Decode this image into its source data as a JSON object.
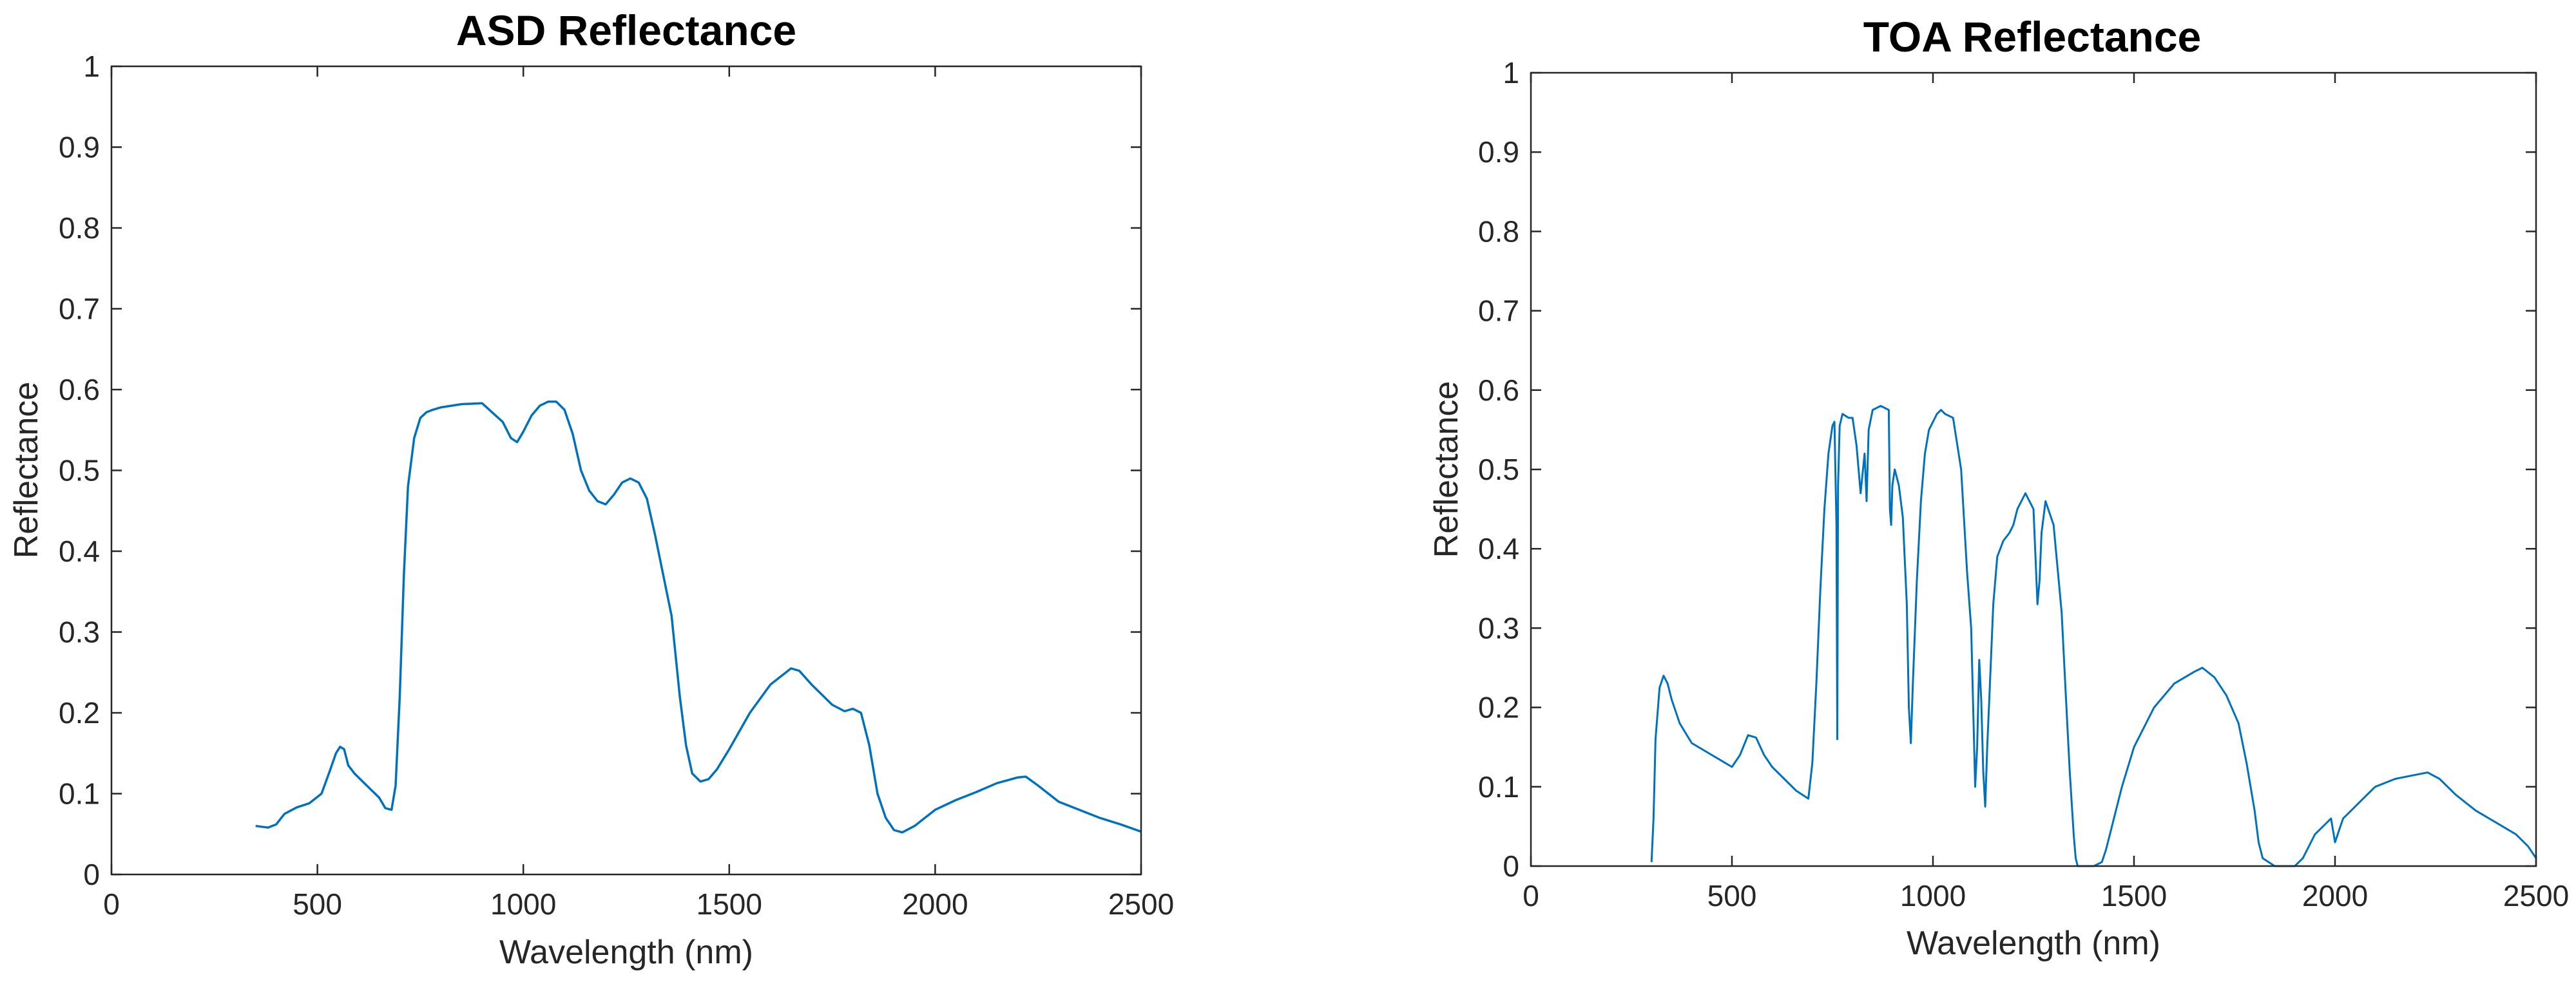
{
  "colors": {
    "line": "#0072BD",
    "axis": "#262626",
    "background": "#ffffff"
  },
  "chart_data": [
    {
      "type": "line",
      "title": "ASD Reflectance",
      "xlabel": "Wavelength (nm)",
      "ylabel": "Reflectance",
      "xlim": [
        0,
        2500
      ],
      "ylim": [
        0,
        1
      ],
      "xticks": [
        0,
        500,
        1000,
        1500,
        2000,
        2500
      ],
      "yticks": [
        0,
        0.1,
        0.2,
        0.3,
        0.4,
        0.5,
        0.6,
        0.7,
        0.8,
        0.9,
        1
      ],
      "grid": false,
      "series": [
        {
          "x": [
            350,
            380,
            400,
            420,
            450,
            480,
            510,
            530,
            545,
            555,
            565,
            575,
            590,
            610,
            630,
            650,
            665,
            680,
            690,
            700,
            710,
            720,
            735,
            750,
            765,
            780,
            800,
            850,
            900,
            950,
            970,
            985,
            1000,
            1020,
            1040,
            1060,
            1080,
            1100,
            1120,
            1140,
            1160,
            1180,
            1200,
            1220,
            1240,
            1260,
            1280,
            1300,
            1320,
            1340,
            1360,
            1380,
            1395,
            1410,
            1430,
            1450,
            1470,
            1500,
            1550,
            1600,
            1650,
            1670,
            1700,
            1750,
            1780,
            1800,
            1820,
            1840,
            1860,
            1880,
            1900,
            1920,
            1950,
            2000,
            2050,
            2100,
            2150,
            2200,
            2220,
            2250,
            2300,
            2350,
            2400,
            2450,
            2500
          ],
          "y": [
            0.06,
            0.058,
            0.062,
            0.075,
            0.083,
            0.088,
            0.1,
            0.128,
            0.15,
            0.158,
            0.155,
            0.135,
            0.125,
            0.115,
            0.105,
            0.095,
            0.082,
            0.08,
            0.11,
            0.22,
            0.37,
            0.48,
            0.54,
            0.565,
            0.572,
            0.575,
            0.578,
            0.582,
            0.583,
            0.56,
            0.54,
            0.535,
            0.548,
            0.568,
            0.58,
            0.585,
            0.585,
            0.575,
            0.545,
            0.5,
            0.475,
            0.462,
            0.458,
            0.47,
            0.485,
            0.49,
            0.485,
            0.465,
            0.42,
            0.37,
            0.32,
            0.22,
            0.16,
            0.125,
            0.115,
            0.118,
            0.13,
            0.155,
            0.2,
            0.235,
            0.255,
            0.252,
            0.235,
            0.21,
            0.202,
            0.205,
            0.2,
            0.16,
            0.1,
            0.07,
            0.055,
            0.052,
            0.06,
            0.08,
            0.092,
            0.102,
            0.113,
            0.12,
            0.121,
            0.11,
            0.09,
            0.08,
            0.07,
            0.062,
            0.053
          ]
        }
      ]
    },
    {
      "type": "line",
      "title": "TOA Reflectance",
      "xlabel": "Wavelength (nm)",
      "ylabel": "Reflectance",
      "xlim": [
        0,
        2500
      ],
      "ylim": [
        0,
        1
      ],
      "xticks": [
        0,
        500,
        1000,
        1500,
        2000,
        2500
      ],
      "yticks": [
        0,
        0.1,
        0.2,
        0.3,
        0.4,
        0.5,
        0.6,
        0.7,
        0.8,
        0.9,
        1
      ],
      "grid": false,
      "series": [
        {
          "x": [
            300,
            305,
            310,
            320,
            330,
            340,
            350,
            370,
            400,
            450,
            500,
            520,
            540,
            560,
            580,
            600,
            630,
            660,
            690,
            700,
            710,
            720,
            730,
            740,
            750,
            755,
            760,
            762,
            764,
            768,
            775,
            790,
            800,
            810,
            820,
            830,
            835,
            840,
            850,
            870,
            890,
            893,
            896,
            899,
            905,
            915,
            925,
            935,
            940,
            945,
            950,
            960,
            970,
            980,
            990,
            1000,
            1010,
            1020,
            1030,
            1050,
            1070,
            1085,
            1095,
            1100,
            1105,
            1110,
            1115,
            1120,
            1125,
            1130,
            1135,
            1140,
            1145,
            1150,
            1160,
            1175,
            1190,
            1200,
            1210,
            1230,
            1250,
            1260,
            1265,
            1270,
            1280,
            1300,
            1320,
            1330,
            1340,
            1350,
            1355,
            1360,
            1380,
            1400,
            1420,
            1430,
            1440,
            1450,
            1470,
            1500,
            1550,
            1600,
            1650,
            1670,
            1700,
            1730,
            1760,
            1780,
            1800,
            1810,
            1820,
            1850,
            1900,
            1920,
            1940,
            1950,
            1970,
            1990,
            2000,
            2010,
            2020,
            2040,
            2060,
            2080,
            2100,
            2150,
            2200,
            2230,
            2260,
            2300,
            2350,
            2400,
            2450,
            2480,
            2500
          ],
          "y": [
            0.005,
            0.06,
            0.16,
            0.225,
            0.24,
            0.23,
            0.21,
            0.18,
            0.155,
            0.14,
            0.125,
            0.14,
            0.165,
            0.162,
            0.14,
            0.125,
            0.11,
            0.095,
            0.085,
            0.13,
            0.23,
            0.35,
            0.45,
            0.52,
            0.555,
            0.56,
            0.43,
            0.16,
            0.48,
            0.555,
            0.57,
            0.565,
            0.565,
            0.53,
            0.47,
            0.52,
            0.46,
            0.55,
            0.575,
            0.58,
            0.575,
            0.45,
            0.43,
            0.48,
            0.5,
            0.48,
            0.44,
            0.33,
            0.2,
            0.155,
            0.23,
            0.36,
            0.46,
            0.52,
            0.55,
            0.56,
            0.57,
            0.575,
            0.57,
            0.565,
            0.5,
            0.37,
            0.3,
            0.2,
            0.1,
            0.15,
            0.26,
            0.21,
            0.12,
            0.075,
            0.15,
            0.21,
            0.27,
            0.33,
            0.39,
            0.41,
            0.42,
            0.43,
            0.45,
            0.47,
            0.45,
            0.33,
            0.36,
            0.42,
            0.46,
            0.43,
            0.32,
            0.22,
            0.12,
            0.04,
            0.01,
            0,
            0,
            0,
            0.005,
            0.02,
            0.04,
            0.06,
            0.1,
            0.15,
            0.2,
            0.23,
            0.245,
            0.25,
            0.238,
            0.215,
            0.18,
            0.13,
            0.07,
            0.03,
            0.01,
            0,
            0,
            0.01,
            0.03,
            0.04,
            0.05,
            0.06,
            0.03,
            0.045,
            0.06,
            0.07,
            0.08,
            0.09,
            0.1,
            0.11,
            0.115,
            0.118,
            0.11,
            0.09,
            0.07,
            0.055,
            0.04,
            0.025,
            0.01
          ]
        }
      ]
    }
  ]
}
